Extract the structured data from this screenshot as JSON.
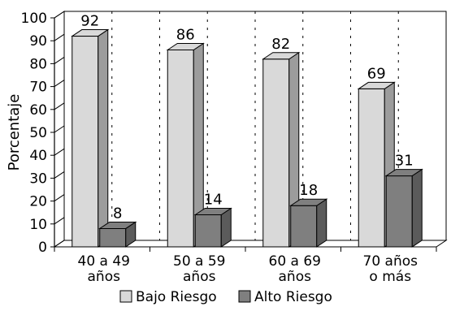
{
  "chart_data": {
    "type": "bar",
    "title": "",
    "xlabel": "",
    "ylabel": "Porcentaje",
    "ylim": [
      0,
      100
    ],
    "yticks": [
      0,
      10,
      20,
      30,
      40,
      50,
      60,
      70,
      80,
      90,
      100
    ],
    "categories": [
      [
        "40 a 49",
        "años"
      ],
      [
        "50 a 59",
        "años"
      ],
      [
        "60 a 69",
        "años"
      ],
      [
        "70 años",
        "o más"
      ]
    ],
    "series": [
      {
        "name": "Bajo Riesgo",
        "values": [
          92,
          86,
          82,
          69
        ],
        "color": "#d9d9d9"
      },
      {
        "name": "Alto Riesgo",
        "values": [
          8,
          14,
          18,
          31
        ],
        "color": "#7f7f7f"
      }
    ],
    "legend_position": "bottom",
    "grid": "vertical dashed",
    "style": "3d"
  }
}
